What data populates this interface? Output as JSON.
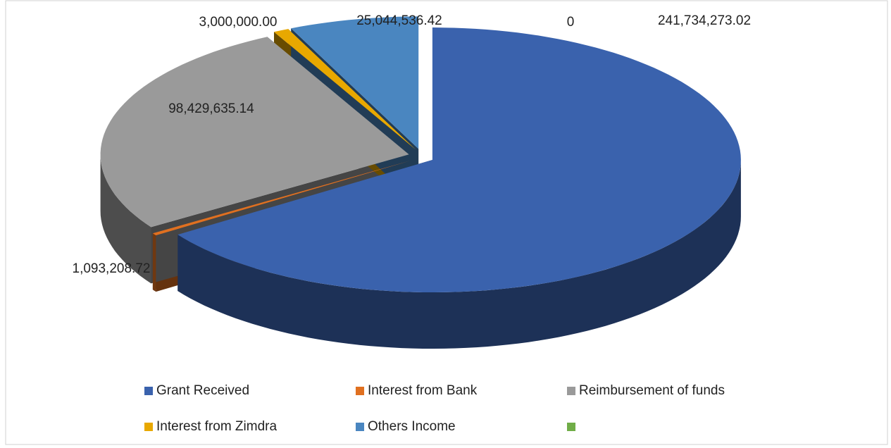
{
  "chart_data": {
    "type": "pie3d",
    "categories": [
      "Grant Received",
      "Interest from Bank",
      "Reimbursement of funds",
      "Interest from Zimdra",
      "Others Income",
      null
    ],
    "values": [
      241734273.02,
      1093208.72,
      98429635.14,
      3000000.0,
      25044536.42,
      0
    ],
    "value_labels": [
      "241,734,273.02",
      "1,093,208.72",
      "98,429,635.14",
      "3,000,000.00",
      "25,044,536.42",
      "0"
    ],
    "colors": [
      "#3a62ad",
      "#e07020",
      "#9a9a9a",
      "#e8a800",
      "#4a86c0",
      "#70ad47"
    ],
    "legend": "bottom"
  }
}
